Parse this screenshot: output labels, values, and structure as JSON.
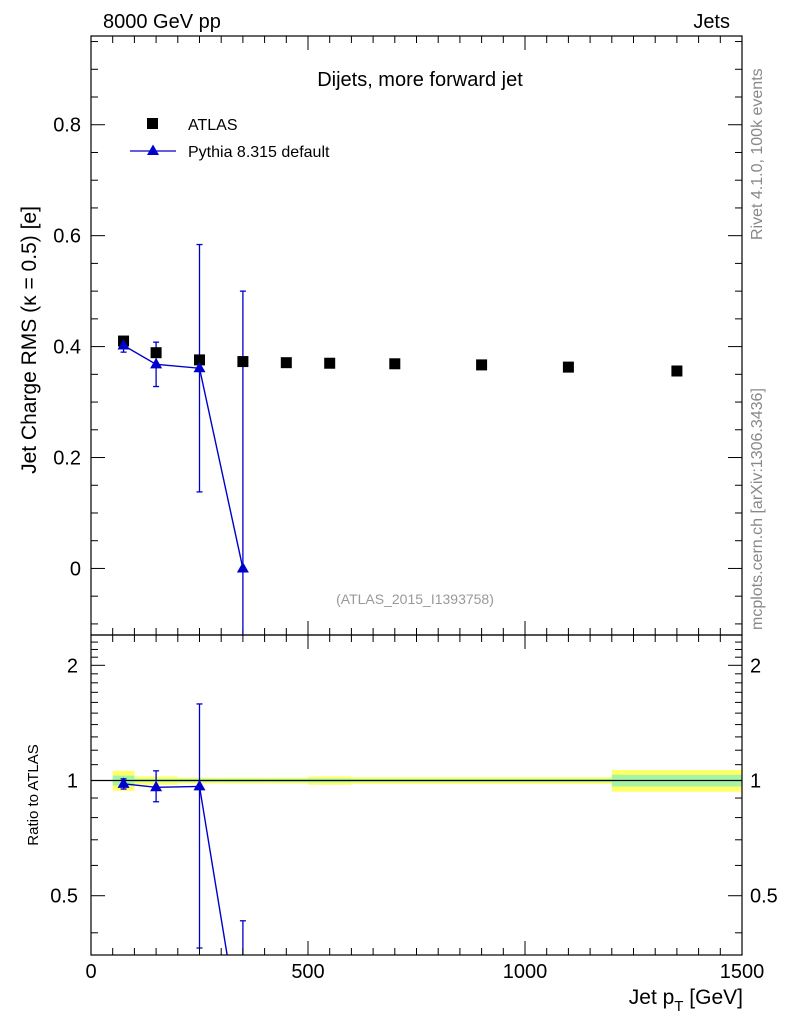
{
  "header": {
    "left": "8000 GeV pp",
    "right": "Jets"
  },
  "side_labels": {
    "rivet": "Rivet 4.1.0,  100k events",
    "mcplots": "mcplots.cern.ch [arXiv:1306.3436]"
  },
  "chart_data": [
    {
      "type": "scatter",
      "panel": "main",
      "title": "Dijets, more forward jet",
      "watermark": "(ATLAS_2015_I1393758)",
      "xlabel": "Jet p_T [GeV]",
      "ylabel": "Jet Charge RMS (κ = 0.5) [e]",
      "xlim": [
        0,
        1500
      ],
      "ylim": [
        -0.12,
        0.96
      ],
      "yticks": [
        0,
        0.2,
        0.4,
        0.6,
        0.8
      ],
      "ytick_labels": [
        "0",
        "0.2",
        "0.4",
        "0.6",
        "0.8"
      ],
      "legend": {
        "placement": "top-left"
      },
      "series": [
        {
          "name": "ATLAS",
          "color": "#000000",
          "marker": "square",
          "x": [
            75,
            150,
            250,
            350,
            450,
            550,
            700,
            900,
            1100,
            1350
          ],
          "y": [
            0.41,
            0.389,
            0.376,
            0.373,
            0.371,
            0.37,
            0.369,
            0.367,
            0.363,
            0.356
          ]
        },
        {
          "name": "Pythia 8.315 default",
          "color": "#0000cc",
          "marker": "triangle",
          "x": [
            75,
            150,
            250,
            350
          ],
          "y": [
            0.402,
            0.368,
            0.361,
            0.0
          ],
          "err_low": [
            0.012,
            0.04,
            0.223,
            0.5
          ],
          "err_high": [
            0.012,
            0.04,
            0.223,
            0.5
          ]
        }
      ]
    },
    {
      "type": "scatter",
      "panel": "ratio",
      "xlabel": "Jet p_T [GeV]",
      "ylabel": "Ratio to ATLAS",
      "xlim": [
        0,
        1500
      ],
      "ylim": [
        0.35,
        2.4
      ],
      "scale": "log",
      "xticks": [
        0,
        500,
        1000,
        1500
      ],
      "xtick_labels": [
        "0",
        "500",
        "1000",
        "1500"
      ],
      "yticks": [
        0.5,
        1,
        2
      ],
      "ytick_labels": [
        "0.5",
        "1",
        "2"
      ],
      "reference_line": 1,
      "band_bins": [
        {
          "x0": 50,
          "x1": 100,
          "stat": 0.03,
          "tot": 0.06
        },
        {
          "x0": 100,
          "x1": 200,
          "stat": 0.01,
          "tot": 0.025
        },
        {
          "x0": 200,
          "x1": 300,
          "stat": 0.01,
          "tot": 0.018
        },
        {
          "x0": 300,
          "x1": 400,
          "stat": 0.01,
          "tot": 0.018
        },
        {
          "x0": 400,
          "x1": 500,
          "stat": 0.01,
          "tot": 0.018
        },
        {
          "x0": 500,
          "x1": 600,
          "stat": 0.012,
          "tot": 0.025
        },
        {
          "x0": 600,
          "x1": 800,
          "stat": 0.01,
          "tot": 0.02
        },
        {
          "x0": 800,
          "x1": 1000,
          "stat": 0.01,
          "tot": 0.02
        },
        {
          "x0": 1000,
          "x1": 1200,
          "stat": 0.01,
          "tot": 0.02
        },
        {
          "x0": 1200,
          "x1": 1500,
          "stat": 0.035,
          "tot": 0.065
        }
      ],
      "band_colors": {
        "stat": "#ffff66",
        "tot": "#a6f5a6"
      },
      "series": [
        {
          "name": "Pythia 8.315 default",
          "color": "#0000cc",
          "marker": "triangle",
          "x": [
            75,
            150,
            250,
            350
          ],
          "y": [
            0.98,
            0.96,
            0.965,
            0.0
          ],
          "err_low": [
            0.03,
            0.08,
            0.6,
            0.6
          ],
          "err_high": [
            0.03,
            0.1,
            0.62,
            0.43
          ]
        }
      ]
    }
  ]
}
